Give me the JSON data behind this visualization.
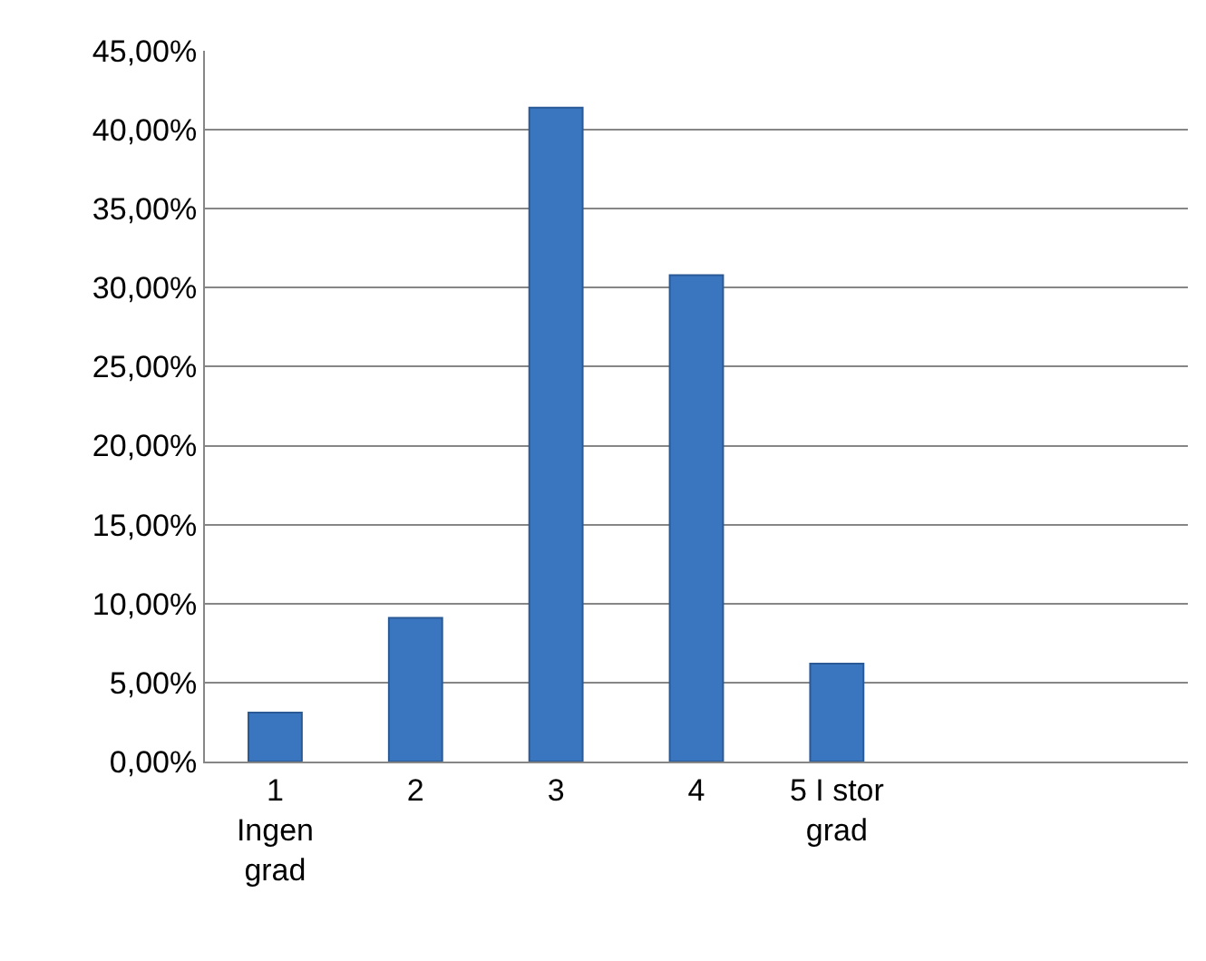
{
  "chart_data": {
    "type": "bar",
    "categories": [
      "1\nIngen\ngrad",
      "2",
      "3",
      "4",
      "5 I stor\ngrad",
      null,
      null
    ],
    "values": [
      3.1,
      9.1,
      41.4,
      30.8,
      6.2,
      null,
      null
    ],
    "color": "#3a76c0",
    "ylim": [
      0,
      45
    ],
    "yticks": [
      {
        "value": 0,
        "label": "0,00%"
      },
      {
        "value": 5,
        "label": "5,00%"
      },
      {
        "value": 10,
        "label": "10,00%"
      },
      {
        "value": 15,
        "label": "15,00%"
      },
      {
        "value": 20,
        "label": "20,00%"
      },
      {
        "value": 25,
        "label": "25,00%"
      },
      {
        "value": 30,
        "label": "30,00%"
      },
      {
        "value": 35,
        "label": "35,00%"
      },
      {
        "value": 40,
        "label": "40,00%"
      },
      {
        "value": 45,
        "label": "45,00%"
      }
    ],
    "grid": "y"
  }
}
